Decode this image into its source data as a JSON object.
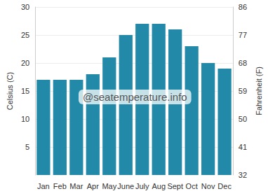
{
  "chart_data": {
    "type": "bar",
    "categories": [
      "Jan",
      "Feb",
      "Mar",
      "Apr",
      "May",
      "June",
      "July",
      "Aug",
      "Sept",
      "Oct",
      "Nov",
      "Dec"
    ],
    "values": [
      17,
      17,
      17,
      18,
      21,
      25,
      27,
      27,
      26,
      23,
      20,
      19
    ],
    "color": "#2389a8",
    "ylabel": "Celsius (C)",
    "ylim": [
      0,
      30
    ],
    "yticks": [
      5,
      10,
      15,
      20,
      25,
      30
    ],
    "y2label": "Fahrenheit (F)",
    "y2lim": [
      32,
      86
    ],
    "y2ticks": [
      32,
      41,
      50,
      59,
      68,
      77,
      86
    ],
    "annotations": [
      "@seatemperature.info"
    ],
    "grid": true
  }
}
